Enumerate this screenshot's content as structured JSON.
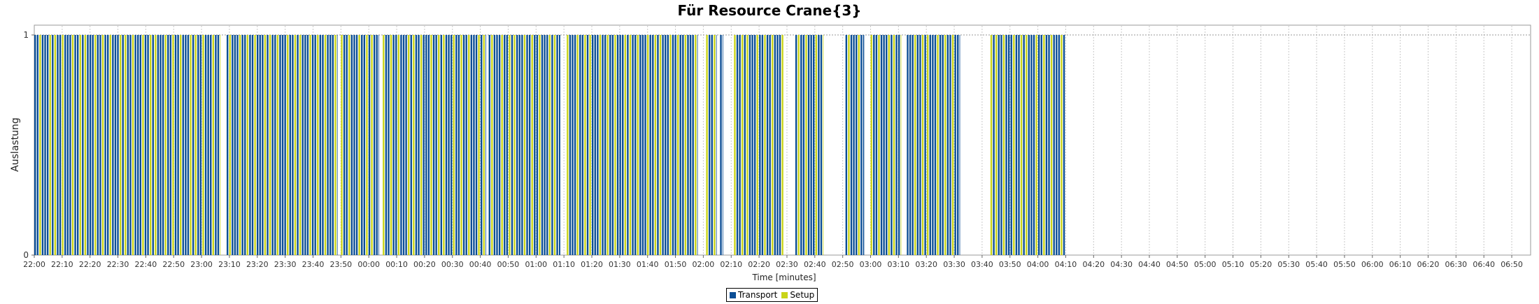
{
  "chart_data": {
    "type": "bar",
    "title": "Für Resource Crane{3}",
    "xlabel": "Time [minutes]",
    "ylabel": "Auslastung",
    "ylim": [
      0,
      1
    ],
    "yticks": [
      "0",
      "1"
    ],
    "x_start": "22:00",
    "x_end": "06:58",
    "xticks": [
      "22:00",
      "22:10",
      "22:20",
      "22:30",
      "22:40",
      "22:50",
      "23:00",
      "23:10",
      "23:20",
      "23:30",
      "23:40",
      "23:50",
      "00:00",
      "00:10",
      "00:20",
      "00:30",
      "00:40",
      "00:50",
      "01:00",
      "01:10",
      "01:20",
      "01:30",
      "01:40",
      "01:50",
      "02:00",
      "02:10",
      "02:20",
      "02:30",
      "02:40",
      "02:50",
      "03:00",
      "03:10",
      "03:20",
      "03:30",
      "03:40",
      "03:50",
      "04:00",
      "04:10",
      "04:20",
      "04:30",
      "04:40",
      "04:50",
      "05:00",
      "05:10",
      "05:20",
      "05:30",
      "05:40",
      "05:50",
      "06:00",
      "06:10",
      "06:20",
      "06:30",
      "06:40",
      "06:50"
    ],
    "grid": true,
    "legend_position": "bottom-center",
    "series": [
      {
        "name": "Transport",
        "color": "#0b4e95"
      },
      {
        "name": "Setup",
        "color": "#c9d418"
      }
    ],
    "busy_periods": [
      {
        "start": "22:00",
        "end": "23:07",
        "value": 1
      },
      {
        "start": "23:07",
        "end": "23:09",
        "value": 0
      },
      {
        "start": "23:09",
        "end": "23:49",
        "value": 1
      },
      {
        "start": "23:49",
        "end": "23:50",
        "value": 0
      },
      {
        "start": "23:50",
        "end": "00:04",
        "value": 1
      },
      {
        "start": "00:04",
        "end": "00:05",
        "value": 0
      },
      {
        "start": "00:05",
        "end": "00:42",
        "value": 1
      },
      {
        "start": "00:42",
        "end": "00:43",
        "value": 0
      },
      {
        "start": "00:43",
        "end": "01:09",
        "value": 1
      },
      {
        "start": "01:09",
        "end": "01:11",
        "value": 0
      },
      {
        "start": "01:11",
        "end": "01:58",
        "value": 1
      },
      {
        "start": "01:58",
        "end": "02:01",
        "value": 0
      },
      {
        "start": "02:01",
        "end": "02:05",
        "value": 1
      },
      {
        "start": "02:05",
        "end": "02:06",
        "value": 0
      },
      {
        "start": "02:06",
        "end": "02:07",
        "value": 1
      },
      {
        "start": "02:07",
        "end": "02:11",
        "value": 0
      },
      {
        "start": "02:11",
        "end": "02:29",
        "value": 1
      },
      {
        "start": "02:29",
        "end": "02:33",
        "value": 0
      },
      {
        "start": "02:33",
        "end": "02:43",
        "value": 1
      },
      {
        "start": "02:43",
        "end": "02:51",
        "value": 0
      },
      {
        "start": "02:51",
        "end": "02:58",
        "value": 1
      },
      {
        "start": "02:58",
        "end": "03:00",
        "value": 0
      },
      {
        "start": "03:00",
        "end": "03:11",
        "value": 1
      },
      {
        "start": "03:11",
        "end": "03:13",
        "value": 0
      },
      {
        "start": "03:13",
        "end": "03:32",
        "value": 1
      },
      {
        "start": "03:32",
        "end": "03:43",
        "value": 0
      },
      {
        "start": "03:43",
        "end": "04:10",
        "value": 1
      },
      {
        "start": "04:10",
        "end": "06:58",
        "value": 0
      }
    ],
    "pattern": [
      0,
      0,
      1,
      0,
      0,
      0,
      1,
      0,
      1,
      0,
      0,
      1,
      0,
      0,
      0,
      1,
      0,
      0,
      1,
      0,
      1,
      0,
      0,
      0,
      1,
      0,
      0,
      1
    ]
  },
  "legend": {
    "transport_label": "Transport",
    "setup_label": "Setup"
  }
}
